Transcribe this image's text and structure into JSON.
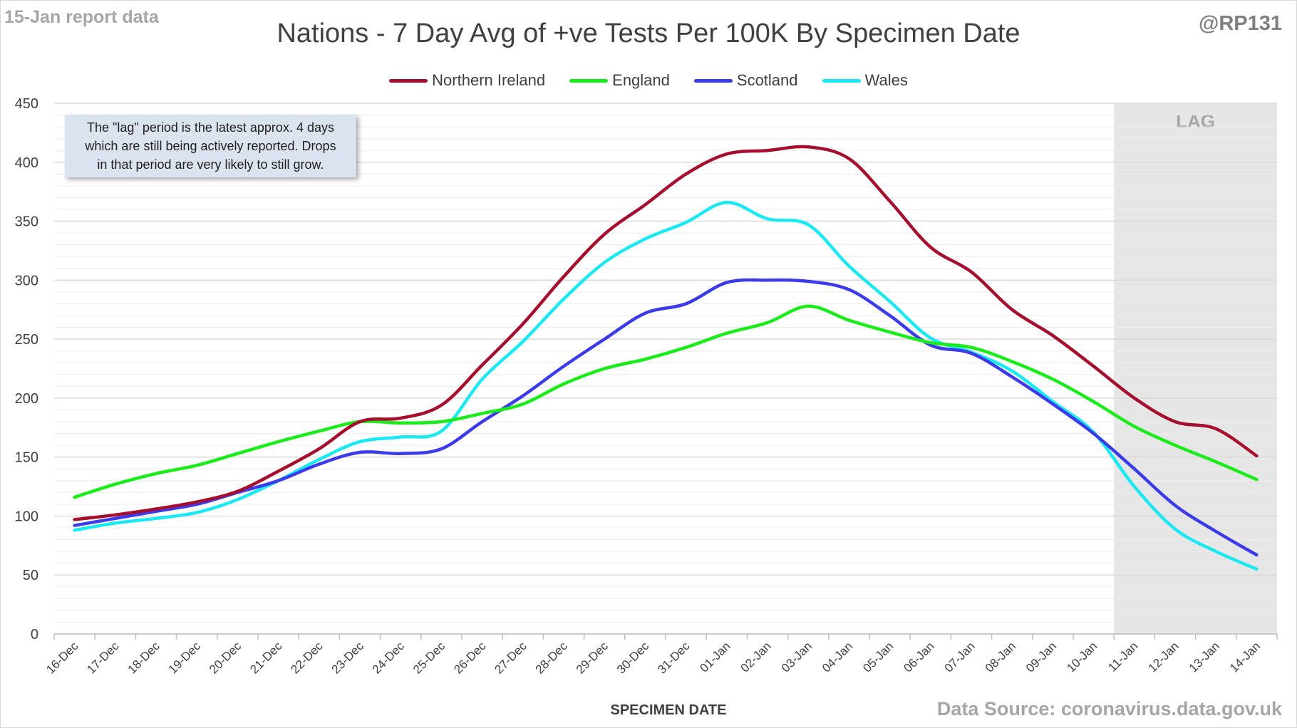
{
  "header": {
    "report_date": "15-Jan report data",
    "handle": "@RP131",
    "title": "Nations - 7 Day Avg of +ve Tests Per 100K By Specimen Date"
  },
  "footer": {
    "data_source": "Data Source: coronavirus.data.gov.uk"
  },
  "annotation": {
    "lines": [
      "The \"lag\" period is the latest approx. 4 days",
      "which are still being actively reported.  Drops",
      "in that period are very likely to still grow."
    ],
    "lag_label": "LAG"
  },
  "colors": {
    "northern_ireland": "#a50e2d",
    "england": "#1aeb1a",
    "scotland": "#3b3bea",
    "wales": "#1ae8f2",
    "lag_shade": "#e6e6e6",
    "gridline": "#d9d9d9"
  },
  "chart_data": {
    "type": "line",
    "title": "Nations - 7 Day Avg of +ve Tests Per 100K By Specimen Date",
    "xlabel": "SPECIMEN DATE",
    "ylabel": "",
    "ylim": [
      0,
      450
    ],
    "yticks": [
      0,
      50,
      100,
      150,
      200,
      250,
      300,
      350,
      400,
      450
    ],
    "grid": true,
    "minor_grid": true,
    "legend_position": "top-center",
    "lag_period": [
      "11-Jan",
      "14-Jan"
    ],
    "categories": [
      "16-Dec",
      "17-Dec",
      "18-Dec",
      "19-Dec",
      "20-Dec",
      "21-Dec",
      "22-Dec",
      "23-Dec",
      "24-Dec",
      "25-Dec",
      "26-Dec",
      "27-Dec",
      "28-Dec",
      "29-Dec",
      "30-Dec",
      "31-Dec",
      "01-Jan",
      "02-Jan",
      "03-Jan",
      "04-Jan",
      "05-Jan",
      "06-Jan",
      "07-Jan",
      "08-Jan",
      "09-Jan",
      "10-Jan",
      "11-Jan",
      "12-Jan",
      "13-Jan",
      "14-Jan"
    ],
    "series": [
      {
        "name": "Northern Ireland",
        "color": "#a50e2d",
        "values": [
          97,
          101,
          106,
          112,
          121,
          138,
          157,
          180,
          183,
          194,
          228,
          263,
          303,
          339,
          364,
          390,
          407,
          410,
          413,
          403,
          367,
          328,
          307,
          275,
          253,
          227,
          200,
          180,
          174,
          151
        ]
      },
      {
        "name": "England",
        "color": "#1aeb1a",
        "values": [
          116,
          127,
          136,
          143,
          153,
          163,
          172,
          180,
          179,
          180,
          187,
          195,
          212,
          225,
          233,
          243,
          255,
          264,
          278,
          266,
          256,
          247,
          243,
          231,
          216,
          197,
          176,
          160,
          146,
          131
        ]
      },
      {
        "name": "Scotland",
        "color": "#3b3bea",
        "values": [
          92,
          98,
          104,
          110,
          120,
          130,
          144,
          154,
          153,
          157,
          180,
          202,
          227,
          250,
          272,
          280,
          298,
          300,
          299,
          292,
          270,
          245,
          238,
          218,
          195,
          170,
          140,
          109,
          87,
          67
        ]
      },
      {
        "name": "Wales",
        "color": "#1ae8f2",
        "values": [
          88,
          94,
          98,
          103,
          114,
          130,
          148,
          163,
          167,
          172,
          216,
          248,
          284,
          315,
          335,
          349,
          366,
          352,
          347,
          312,
          282,
          251,
          239,
          223,
          197,
          171,
          125,
          89,
          70,
          55
        ]
      }
    ]
  }
}
